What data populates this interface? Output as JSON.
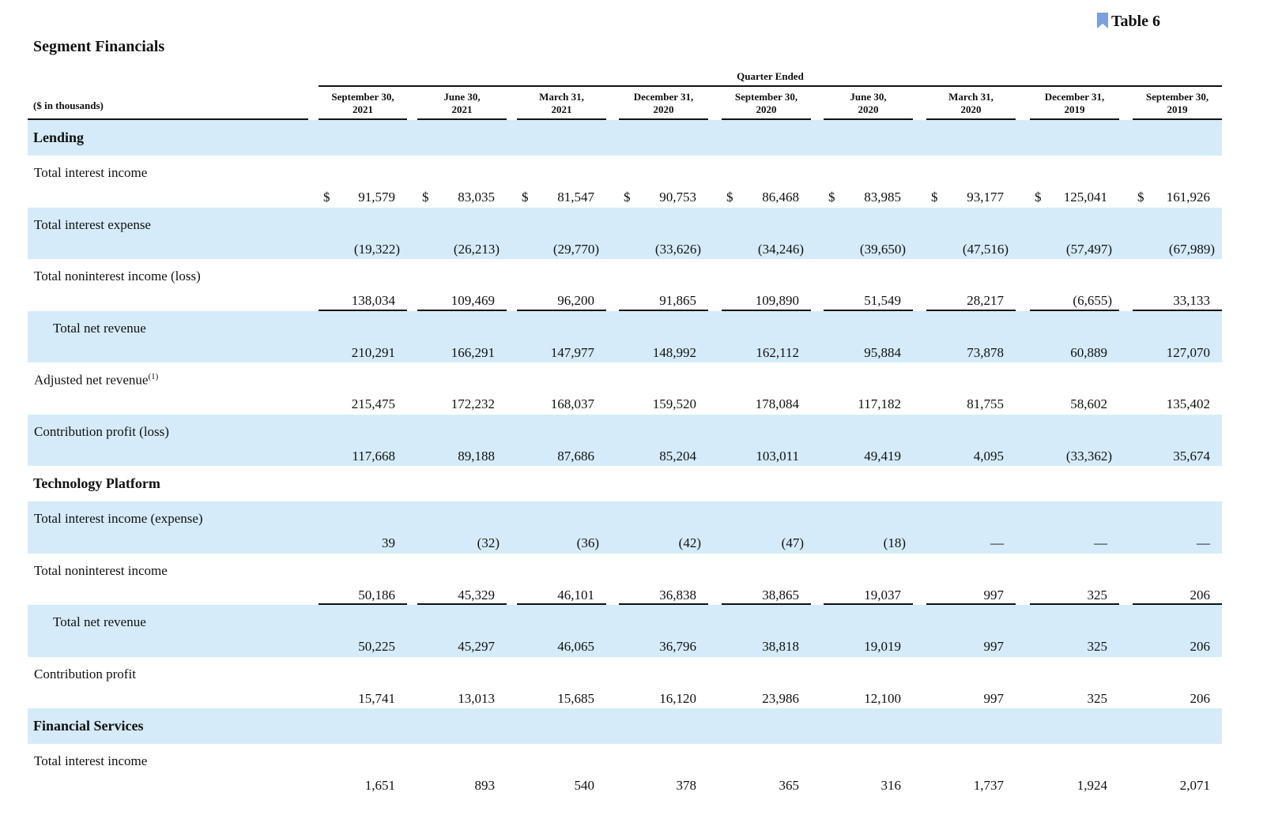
{
  "header": {
    "badge": "Table 6",
    "title": "Segment Financials",
    "units": "($ in thousands)",
    "group": "Quarter Ended",
    "columns": [
      {
        "date": "September 30,",
        "year": "2021"
      },
      {
        "date": "June 30,",
        "year": "2021"
      },
      {
        "date": "March 31,",
        "year": "2021"
      },
      {
        "date": "December 31,",
        "year": "2020"
      },
      {
        "date": "September 30,",
        "year": "2020"
      },
      {
        "date": "June 30,",
        "year": "2020"
      },
      {
        "date": "March 31,",
        "year": "2020"
      },
      {
        "date": "December 31,",
        "year": "2019"
      },
      {
        "date": "September 30,",
        "year": "2019"
      }
    ]
  },
  "table": {
    "currency": "$",
    "sections": [
      {
        "title": "Lending",
        "rows": [
          {
            "label": "Total interest income",
            "values": [
              "91,579",
              "83,035",
              "81,547",
              "90,753",
              "86,468",
              "83,985",
              "93,177",
              "125,041",
              "161,926"
            ]
          },
          {
            "label": "Total interest expense",
            "values": [
              "(19,322)",
              "(26,213)",
              "(29,770)",
              "(33,626)",
              "(34,246)",
              "(39,650)",
              "(47,516)",
              "(57,497)",
              "(67,989)"
            ]
          },
          {
            "label": "Total noninterest income (loss)",
            "values": [
              "138,034",
              "109,469",
              "96,200",
              "91,865",
              "109,890",
              "51,549",
              "28,217",
              "(6,655)",
              "33,133"
            ]
          },
          {
            "label": "Total net revenue",
            "values": [
              "210,291",
              "166,291",
              "147,977",
              "148,992",
              "162,112",
              "95,884",
              "73,878",
              "60,889",
              "127,070"
            ]
          },
          {
            "label": "Adjusted net revenue",
            "note": "(1)",
            "values": [
              "215,475",
              "172,232",
              "168,037",
              "159,520",
              "178,084",
              "117,182",
              "81,755",
              "58,602",
              "135,402"
            ]
          },
          {
            "label": "Contribution profit (loss)",
            "values": [
              "117,668",
              "89,188",
              "87,686",
              "85,204",
              "103,011",
              "49,419",
              "4,095",
              "(33,362)",
              "35,674"
            ]
          }
        ]
      },
      {
        "title": "Technology Platform",
        "rows": [
          {
            "label": "Total interest income (expense)",
            "values": [
              "39",
              "(32)",
              "(36)",
              "(42)",
              "(47)",
              "(18)",
              "—",
              "—",
              "—"
            ]
          },
          {
            "label": "Total noninterest income",
            "values": [
              "50,186",
              "45,329",
              "46,101",
              "36,838",
              "38,865",
              "19,037",
              "997",
              "325",
              "206"
            ]
          },
          {
            "label": "Total net revenue",
            "values": [
              "50,225",
              "45,297",
              "46,065",
              "36,796",
              "38,818",
              "19,019",
              "997",
              "325",
              "206"
            ]
          },
          {
            "label": "Contribution profit",
            "values": [
              "15,741",
              "13,013",
              "15,685",
              "16,120",
              "23,986",
              "12,100",
              "997",
              "325",
              "206"
            ]
          }
        ]
      },
      {
        "title": "Financial Services",
        "rows": [
          {
            "label": "Total interest income",
            "values": [
              "1,651",
              "893",
              "540",
              "378",
              "365",
              "316",
              "1,737",
              "1,924",
              "2,071"
            ]
          }
        ]
      }
    ]
  }
}
